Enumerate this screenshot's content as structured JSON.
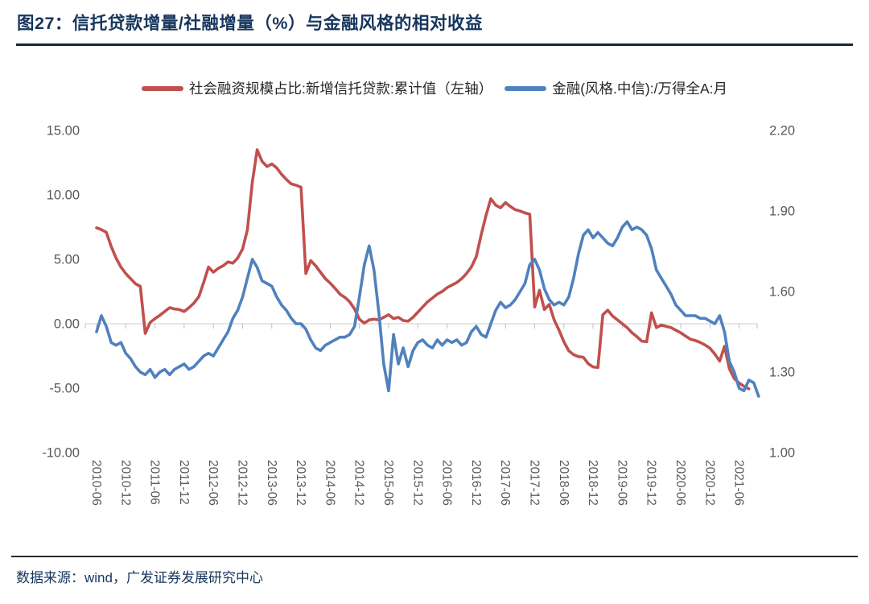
{
  "figure": {
    "title": "图27：信托贷款增量/社融增量（%）与金融风格的相对收益",
    "source": "数据来源：wind，广发证券发展研究中心"
  },
  "colors": {
    "red_series": "#C0504D",
    "blue_series": "#5081BD",
    "title_navy": "#17365D",
    "axis_text_gray": "#595959",
    "zero_line_gray": "#D6D6D6"
  },
  "chart_data": {
    "type": "line",
    "title": "信托贷款增量/社融增量（%）与金融风格的相对收益",
    "xlabel": "",
    "grid": "zero-line-only",
    "legend_position": "top-center",
    "x": [
      "2010-06",
      "2010-07",
      "2010-08",
      "2010-09",
      "2010-10",
      "2010-11",
      "2010-12",
      "2011-01",
      "2011-02",
      "2011-03",
      "2011-04",
      "2011-05",
      "2011-06",
      "2011-07",
      "2011-08",
      "2011-09",
      "2011-10",
      "2011-11",
      "2011-12",
      "2012-01",
      "2012-02",
      "2012-03",
      "2012-04",
      "2012-05",
      "2012-06",
      "2012-07",
      "2012-08",
      "2012-09",
      "2012-10",
      "2012-11",
      "2012-12",
      "2013-01",
      "2013-02",
      "2013-03",
      "2013-04",
      "2013-05",
      "2013-06",
      "2013-07",
      "2013-08",
      "2013-09",
      "2013-10",
      "2013-11",
      "2013-12",
      "2014-01",
      "2014-02",
      "2014-03",
      "2014-04",
      "2014-05",
      "2014-06",
      "2014-07",
      "2014-08",
      "2014-09",
      "2014-10",
      "2014-11",
      "2014-12",
      "2015-01",
      "2015-02",
      "2015-03",
      "2015-04",
      "2015-05",
      "2015-06",
      "2015-07",
      "2015-08",
      "2015-09",
      "2015-10",
      "2015-11",
      "2015-12",
      "2016-01",
      "2016-02",
      "2016-03",
      "2016-04",
      "2016-05",
      "2016-06",
      "2016-07",
      "2016-08",
      "2016-09",
      "2016-10",
      "2016-11",
      "2016-12",
      "2017-01",
      "2017-02",
      "2017-03",
      "2017-04",
      "2017-05",
      "2017-06",
      "2017-07",
      "2017-08",
      "2017-09",
      "2017-10",
      "2017-11",
      "2017-12",
      "2018-01",
      "2018-02",
      "2018-03",
      "2018-04",
      "2018-05",
      "2018-06",
      "2018-07",
      "2018-08",
      "2018-09",
      "2018-10",
      "2018-11",
      "2018-12",
      "2019-01",
      "2019-02",
      "2019-03",
      "2019-04",
      "2019-05",
      "2019-06",
      "2019-07",
      "2019-08",
      "2019-09",
      "2019-10",
      "2019-11",
      "2019-12",
      "2020-01",
      "2020-02",
      "2020-03",
      "2020-04",
      "2020-05",
      "2020-06",
      "2020-07",
      "2020-08",
      "2020-09",
      "2020-10",
      "2020-11",
      "2020-12",
      "2021-01",
      "2021-02",
      "2021-03",
      "2021-04",
      "2021-05",
      "2021-06",
      "2021-07",
      "2021-08",
      "2021-09",
      "2021-10"
    ],
    "series": [
      {
        "name": "社会融资规模占比:新增信托贷款:累计值（左轴）",
        "axis": "left",
        "color": "#C0504D",
        "values": [
          7.45,
          7.3,
          7.1,
          6.0,
          5.1,
          4.4,
          3.9,
          3.5,
          3.1,
          2.9,
          -0.75,
          0.1,
          0.4,
          0.65,
          0.95,
          1.25,
          1.15,
          1.1,
          0.95,
          1.25,
          1.6,
          2.1,
          3.2,
          4.4,
          4.0,
          4.3,
          4.5,
          4.8,
          4.7,
          5.1,
          5.8,
          7.3,
          11.0,
          13.5,
          12.6,
          12.2,
          12.4,
          12.1,
          11.6,
          11.2,
          10.85,
          10.75,
          10.6,
          3.9,
          4.9,
          4.5,
          4.0,
          3.5,
          3.15,
          2.75,
          2.3,
          2.05,
          1.7,
          1.15,
          0.35,
          0.05,
          0.3,
          0.35,
          0.3,
          0.5,
          0.7,
          0.4,
          0.5,
          0.25,
          0.2,
          0.5,
          0.9,
          1.3,
          1.7,
          2.0,
          2.3,
          2.5,
          2.8,
          3.0,
          3.2,
          3.5,
          3.9,
          4.4,
          5.2,
          6.9,
          8.4,
          9.7,
          9.2,
          9.0,
          9.4,
          9.1,
          8.85,
          8.75,
          8.6,
          8.5,
          1.3,
          2.6,
          1.1,
          1.5,
          0.3,
          -0.5,
          -1.4,
          -2.1,
          -2.4,
          -2.55,
          -2.6,
          -3.1,
          -3.35,
          -3.4,
          0.7,
          1.05,
          0.6,
          0.3,
          0.0,
          -0.3,
          -0.7,
          -1.0,
          -1.35,
          -1.4,
          0.85,
          -0.3,
          -0.1,
          -0.2,
          -0.3,
          -0.5,
          -0.7,
          -0.95,
          -1.2,
          -1.3,
          -1.45,
          -1.65,
          -1.9,
          -2.35,
          -2.9,
          -1.75,
          -3.5,
          -4.25,
          -4.6,
          -4.85,
          -5.05,
          null,
          null
        ]
      },
      {
        "name": "金融(风格.中信):/万得全A:月",
        "axis": "right",
        "color": "#5081BD",
        "values": [
          1.45,
          1.51,
          1.47,
          1.41,
          1.4,
          1.41,
          1.37,
          1.35,
          1.32,
          1.3,
          1.29,
          1.31,
          1.28,
          1.3,
          1.31,
          1.29,
          1.31,
          1.32,
          1.33,
          1.31,
          1.32,
          1.34,
          1.36,
          1.37,
          1.36,
          1.39,
          1.42,
          1.45,
          1.5,
          1.53,
          1.58,
          1.65,
          1.72,
          1.69,
          1.64,
          1.63,
          1.62,
          1.58,
          1.55,
          1.53,
          1.5,
          1.48,
          1.48,
          1.46,
          1.42,
          1.39,
          1.38,
          1.4,
          1.41,
          1.42,
          1.43,
          1.43,
          1.44,
          1.47,
          1.58,
          1.7,
          1.77,
          1.68,
          1.52,
          1.33,
          1.23,
          1.44,
          1.33,
          1.39,
          1.32,
          1.38,
          1.41,
          1.42,
          1.4,
          1.39,
          1.42,
          1.4,
          1.42,
          1.41,
          1.42,
          1.4,
          1.41,
          1.45,
          1.47,
          1.44,
          1.43,
          1.48,
          1.53,
          1.56,
          1.54,
          1.55,
          1.57,
          1.6,
          1.63,
          1.7,
          1.72,
          1.68,
          1.61,
          1.57,
          1.55,
          1.56,
          1.55,
          1.58,
          1.65,
          1.74,
          1.81,
          1.83,
          1.8,
          1.82,
          1.8,
          1.78,
          1.77,
          1.8,
          1.84,
          1.86,
          1.83,
          1.84,
          1.83,
          1.81,
          1.76,
          1.68,
          1.65,
          1.62,
          1.59,
          1.55,
          1.53,
          1.51,
          1.51,
          1.51,
          1.5,
          1.5,
          1.49,
          1.48,
          1.51,
          1.45,
          1.34,
          1.3,
          1.24,
          1.23,
          1.27,
          1.26,
          1.21
        ]
      }
    ],
    "left_axis": {
      "tick_labels": [
        "15.00",
        "10.00",
        "5.00",
        "0.00",
        "-5.00",
        "-10.00"
      ],
      "tick_values": [
        15,
        10,
        5,
        0,
        -5,
        -10
      ],
      "range": [
        -10,
        15
      ]
    },
    "right_axis": {
      "tick_labels": [
        "2.20",
        "1.90",
        "1.60",
        "1.30",
        "1.00"
      ],
      "tick_values": [
        2.2,
        1.9,
        1.6,
        1.3,
        1.0
      ],
      "range": [
        1.0,
        2.2
      ]
    },
    "x_tick_labels": [
      "2010-06",
      "2010-12",
      "2011-06",
      "2011-12",
      "2012-06",
      "2012-12",
      "2013-06",
      "2013-12",
      "2014-06",
      "2014-12",
      "2015-06",
      "2015-12",
      "2016-06",
      "2016-12",
      "2017-06",
      "2017-12",
      "2018-06",
      "2018-12",
      "2019-06",
      "2019-12",
      "2020-06",
      "2020-12",
      "2021-06"
    ]
  }
}
